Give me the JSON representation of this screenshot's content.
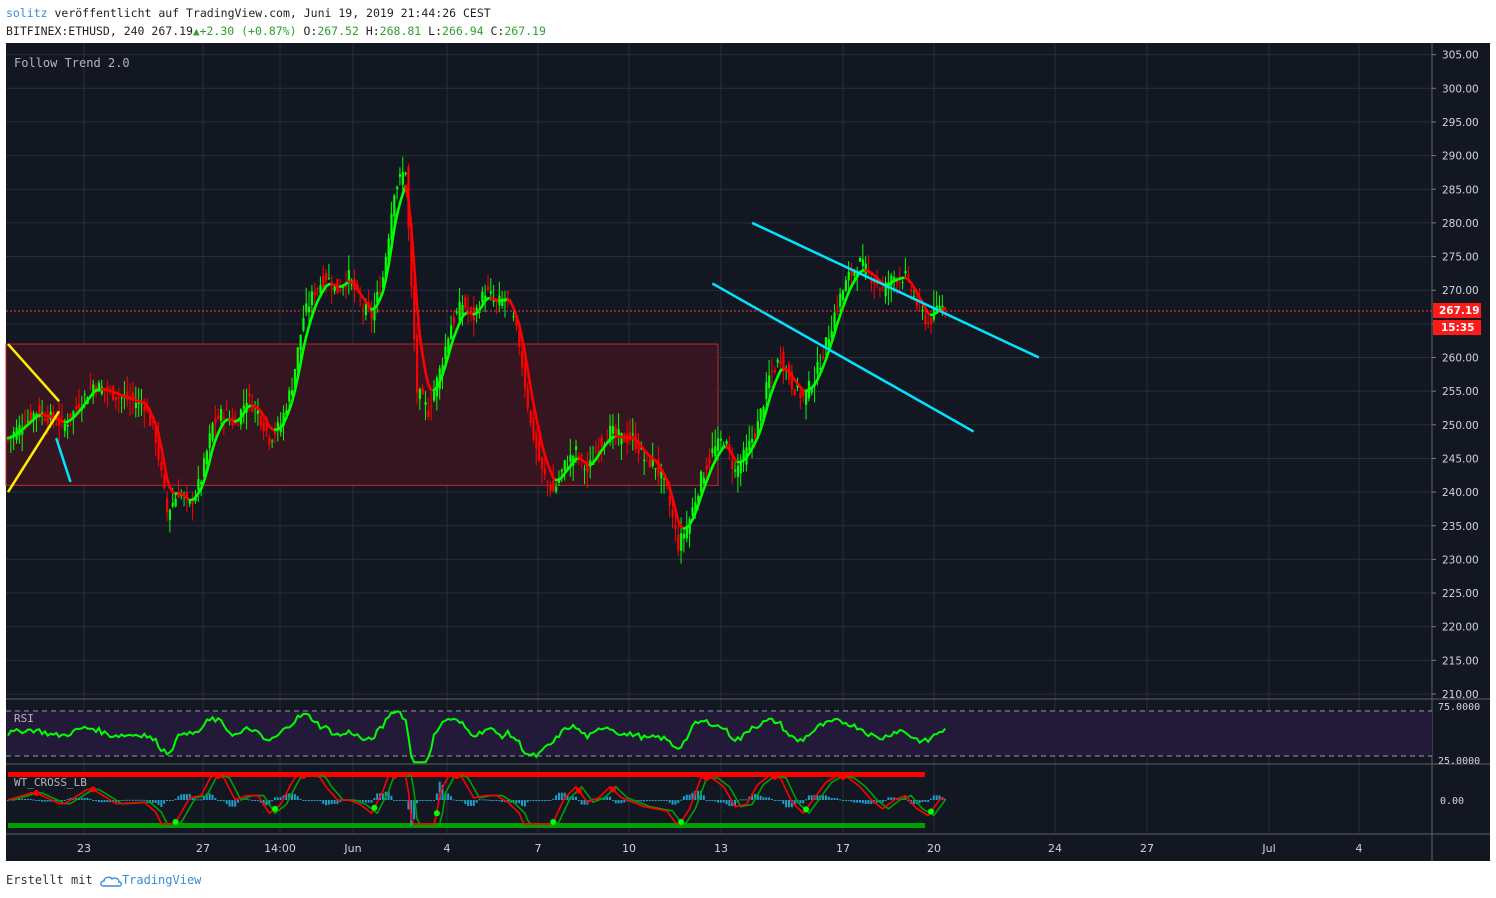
{
  "header": {
    "author": "solitz",
    "published": "veröffentlicht auf TradingView.com, Juni 19, 2019 21:44:26 CEST",
    "symbol": "BITFINEX:ETHUSD, 240",
    "last": "267.19",
    "change": "+2.30 (+0.87%)",
    "open_label": "O:",
    "open": "267.52",
    "high_label": "H:",
    "high": "268.81",
    "low_label": "L:",
    "low": "266.94",
    "close_label": "C:",
    "close": "267.19"
  },
  "footer": {
    "created_with": "Erstellt mit",
    "brand": "TradingView"
  },
  "colors": {
    "bg": "#131722",
    "grid": "#2a2e39",
    "bull": "#00ff00",
    "bear": "#ff0000",
    "cyan": "#00e5ff",
    "yellow": "#ffee00",
    "zone": "#3a1620",
    "rsi_bg": "#231a3a"
  },
  "chart_data": {
    "type": "candlestick",
    "title": "Follow Trend 2.0",
    "price_axis": {
      "min": 210,
      "max": 305,
      "ticks": [
        "305.00",
        "300.00",
        "295.00",
        "290.00",
        "285.00",
        "280.00",
        "275.00",
        "270.00",
        "265.00",
        "260.00",
        "255.00",
        "250.00",
        "245.00",
        "240.00",
        "235.00",
        "230.00",
        "225.00",
        "220.00",
        "215.00",
        "210.00"
      ]
    },
    "last_price_label": "267.19",
    "countdown_label": "15:35",
    "x_ticks": [
      "23",
      "27",
      "14:00",
      "Jun",
      "4",
      "7",
      "10",
      "13",
      "17",
      "20",
      "24",
      "27",
      "Jul",
      "4"
    ],
    "price_path": [
      [
        0,
        248
      ],
      [
        10,
        252
      ],
      [
        20,
        250
      ],
      [
        30,
        256
      ],
      [
        40,
        254
      ],
      [
        48,
        253
      ],
      [
        52,
        248
      ],
      [
        56,
        237
      ],
      [
        60,
        240
      ],
      [
        64,
        238
      ],
      [
        68,
        242
      ],
      [
        72,
        250
      ],
      [
        76,
        252
      ],
      [
        80,
        250
      ],
      [
        84,
        254
      ],
      [
        88,
        252
      ],
      [
        92,
        248
      ],
      [
        96,
        250
      ],
      [
        100,
        256
      ],
      [
        104,
        266
      ],
      [
        108,
        270
      ],
      [
        112,
        272
      ],
      [
        116,
        270
      ],
      [
        120,
        272
      ],
      [
        124,
        268
      ],
      [
        128,
        266
      ],
      [
        132,
        272
      ],
      [
        136,
        285
      ],
      [
        140,
        288
      ],
      [
        142,
        270
      ],
      [
        144,
        255
      ],
      [
        148,
        252
      ],
      [
        152,
        258
      ],
      [
        156,
        265
      ],
      [
        160,
        268
      ],
      [
        164,
        266
      ],
      [
        168,
        270
      ],
      [
        172,
        268
      ],
      [
        176,
        269
      ],
      [
        180,
        262
      ],
      [
        184,
        250
      ],
      [
        188,
        243
      ],
      [
        192,
        240
      ],
      [
        196,
        244
      ],
      [
        200,
        246
      ],
      [
        204,
        243
      ],
      [
        208,
        247
      ],
      [
        212,
        249
      ],
      [
        216,
        248
      ],
      [
        220,
        248
      ],
      [
        224,
        245
      ],
      [
        228,
        244
      ],
      [
        232,
        240
      ],
      [
        236,
        232
      ],
      [
        240,
        236
      ],
      [
        244,
        242
      ],
      [
        248,
        246
      ],
      [
        252,
        248
      ],
      [
        256,
        243
      ],
      [
        260,
        246
      ],
      [
        264,
        250
      ],
      [
        268,
        257
      ],
      [
        272,
        260
      ],
      [
        276,
        256
      ],
      [
        280,
        254
      ],
      [
        284,
        257
      ],
      [
        288,
        262
      ],
      [
        292,
        268
      ],
      [
        296,
        272
      ],
      [
        300,
        274
      ],
      [
        304,
        272
      ],
      [
        308,
        270
      ],
      [
        312,
        272
      ],
      [
        316,
        272
      ],
      [
        320,
        268
      ],
      [
        324,
        265
      ],
      [
        328,
        268
      ],
      [
        330,
        267.19
      ]
    ],
    "zone": {
      "x1": 0,
      "x2": 250,
      "y_top": 262,
      "y_bottom": 241
    },
    "trendlines": [
      {
        "color": "cyan",
        "points": [
          [
            262,
            280
          ],
          [
            363,
            260
          ]
        ]
      },
      {
        "color": "cyan",
        "points": [
          [
            248,
            271
          ],
          [
            340,
            249
          ]
        ]
      },
      {
        "color": "cyan",
        "points": [
          [
            17,
            248
          ],
          [
            22,
            241.5
          ]
        ]
      },
      {
        "color": "yellow",
        "points": [
          [
            0,
            262
          ],
          [
            18,
            253.5
          ]
        ]
      },
      {
        "color": "yellow",
        "points": [
          [
            0,
            240
          ],
          [
            18,
            252
          ]
        ]
      }
    ],
    "rsi": {
      "label": "RSI",
      "ticks": [
        "75.0000",
        "25.0000"
      ],
      "upper": 75,
      "lower": 25
    },
    "wt": {
      "label": "WT_CROSS_LB",
      "ticks": [
        "0.00"
      ]
    }
  }
}
